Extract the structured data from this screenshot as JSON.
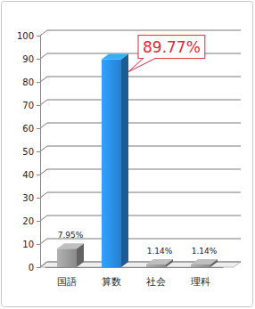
{
  "chart_data": {
    "type": "bar",
    "categories": [
      "国語",
      "算数",
      "社会",
      "理科"
    ],
    "values": [
      7.95,
      89.77,
      1.14,
      1.14
    ],
    "value_labels": [
      "7.95%",
      "89.77%",
      "1.14%",
      "1.14%"
    ],
    "colors": [
      "#9a9a9a",
      "#2a8de8",
      "#9a9a9a",
      "#9a9a9a"
    ],
    "ylim": [
      0,
      100
    ],
    "yticks": [
      0,
      10,
      20,
      30,
      40,
      50,
      60,
      70,
      80,
      90,
      100
    ],
    "grid": true,
    "data_labels": true
  }
}
